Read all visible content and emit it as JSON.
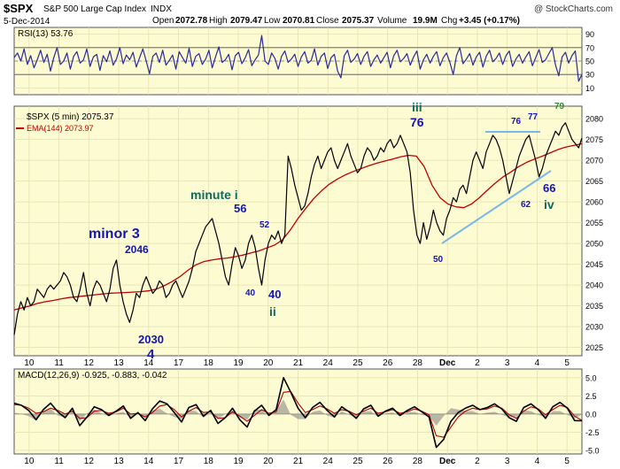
{
  "header": {
    "symbol": "$SPX",
    "name": "S&P 500 Large Cap Index",
    "exchange": "INDX",
    "date": "5-Dec-2014",
    "open_label": "Open",
    "open": "2072.78",
    "high_label": "High",
    "high": "2079.47",
    "low_label": "Low",
    "low": "2070.81",
    "close_label": "Close",
    "close": "2075.37",
    "volume_label": "Volume",
    "volume": "19.9M",
    "chg_label": "Chg",
    "chg": "+3.45 (+0.17%)",
    "watermark": "@ StockCharts.com"
  },
  "colors": {
    "panel_bg": "#fdfbd2",
    "price": "#000000",
    "ema": "#c00000",
    "rsi": "#2a2a9c",
    "macd": "#000000",
    "signal": "#b00000",
    "hist": "#7f7f7f",
    "annot_blue": "#1515b5",
    "annot_teal": "#106b5c",
    "annot_green": "#2f8a2f",
    "trendline": "#7ab8e6"
  },
  "chart_data": [
    {
      "type": "line",
      "panel": "rsi",
      "legend": "RSI(13) 53.76",
      "ylim": [
        0,
        100
      ],
      "levels": [
        70,
        30
      ],
      "y_ticks": [
        10,
        30,
        50,
        70,
        90
      ],
      "x_sessions": 19,
      "values": [
        55,
        62,
        50,
        68,
        45,
        58,
        40,
        52,
        66,
        48,
        60,
        35,
        55,
        70,
        45,
        50,
        62,
        38,
        57,
        64,
        47,
        52,
        68,
        42,
        56,
        60,
        36,
        58,
        49,
        65,
        44,
        53,
        70,
        46,
        59,
        52,
        63,
        41,
        55,
        68,
        50,
        31,
        57,
        62,
        48,
        66,
        44,
        51,
        59,
        38,
        64,
        55,
        47,
        69,
        42,
        57,
        61,
        45,
        53,
        66,
        40,
        56,
        71,
        48,
        52,
        60,
        37,
        58,
        63,
        46,
        55,
        67,
        43,
        52,
        59,
        88,
        50,
        45,
        62,
        54,
        38,
        57,
        65,
        48,
        53,
        60,
        42,
        56,
        64,
        47,
        51,
        68,
        44,
        57,
        62,
        39,
        55,
        60,
        35,
        25,
        58,
        66,
        48,
        53,
        61,
        45,
        57,
        64,
        42,
        52,
        59,
        47,
        55,
        63,
        40,
        58,
        66,
        49,
        54,
        61,
        44,
        56,
        65,
        38,
        52,
        60,
        47,
        57,
        64,
        43,
        55,
        62,
        48,
        30,
        58,
        70,
        46,
        53,
        61,
        44,
        56,
        63,
        41,
        57,
        66,
        49,
        54,
        62,
        45,
        58,
        65,
        42,
        53,
        60,
        47,
        56,
        64,
        43,
        55,
        67,
        48,
        52,
        61,
        70,
        44,
        28,
        56,
        63,
        47,
        58,
        65,
        20,
        30
      ]
    },
    {
      "type": "line",
      "panel": "price",
      "title": "$SPX (5 min) 2075.37",
      "series": [
        {
          "name": "$SPX (5 min) 2075.37",
          "values": [
            2028,
            2033,
            2036,
            2034,
            2037,
            2035,
            2036,
            2039,
            2038,
            2037,
            2039,
            2040,
            2039,
            2040,
            2041,
            2043,
            2042,
            2040,
            2037,
            2036,
            2039,
            2043,
            2038,
            2035,
            2039,
            2041,
            2040,
            2038,
            2036,
            2039,
            2044,
            2046,
            2040,
            2036,
            2033,
            2031,
            2034,
            2038,
            2037,
            2040,
            2042,
            2040,
            2038,
            2039,
            2041,
            2040,
            2037,
            2038,
            2040,
            2041,
            2039,
            2037,
            2039,
            2041,
            2044,
            2048,
            2050,
            2052,
            2054,
            2055,
            2056,
            2053,
            2050,
            2046,
            2042,
            2040,
            2045,
            2049,
            2047,
            2044,
            2046,
            2050,
            2052,
            2049,
            2044,
            2040,
            2046,
            2050,
            2052,
            2051,
            2053,
            2050,
            2052,
            2071,
            2068,
            2064,
            2061,
            2058,
            2059,
            2062,
            2066,
            2069,
            2071,
            2068,
            2070,
            2072,
            2073,
            2070,
            2068,
            2070,
            2072,
            2074,
            2071,
            2069,
            2067,
            2068,
            2071,
            2073,
            2072,
            2070,
            2071,
            2073,
            2072,
            2074,
            2075,
            2073,
            2074,
            2076,
            2074,
            2072,
            2067,
            2058,
            2052,
            2050,
            2055,
            2051,
            2054,
            2058,
            2055,
            2053,
            2052,
            2056,
            2058,
            2061,
            2060,
            2063,
            2064,
            2062,
            2066,
            2070,
            2072,
            2070,
            2068,
            2072,
            2074,
            2076,
            2075,
            2073,
            2070,
            2066,
            2062,
            2065,
            2068,
            2071,
            2073,
            2075,
            2076,
            2073,
            2070,
            2066,
            2068,
            2071,
            2073,
            2075,
            2077,
            2076,
            2078,
            2079,
            2077,
            2075,
            2074,
            2073,
            2075.37
          ]
        },
        {
          "name": "EMA(144) 2073.97",
          "values": [
            2034,
            2034.5,
            2035,
            2035.6,
            2036,
            2036.3,
            2036.7,
            2037,
            2037.2,
            2037.4,
            2037.6,
            2037.8,
            2038,
            2038.1,
            2038.2,
            2038.3,
            2038.4,
            2038.6,
            2039,
            2039.8,
            2040.8,
            2042,
            2043.5,
            2044.8,
            2045.6,
            2046,
            2046.3,
            2046.5,
            2046.8,
            2047.2,
            2047.7,
            2048.2,
            2048.9,
            2049.6,
            2050.8,
            2053.2,
            2056,
            2058.5,
            2060.8,
            2062.7,
            2064.3,
            2065.5,
            2066.5,
            2067.3,
            2068,
            2068.7,
            2069.3,
            2069.8,
            2070.3,
            2070.8,
            2071.2,
            2071,
            2068.5,
            2064,
            2061,
            2059.5,
            2058.8,
            2058.6,
            2059.5,
            2061,
            2062.8,
            2064.5,
            2066,
            2067.2,
            2068.5,
            2069.5,
            2070.3,
            2071,
            2071.8,
            2072.6,
            2073.2,
            2073.6,
            2073.97
          ]
        }
      ],
      "ylim": [
        2023,
        2083
      ],
      "y_ticks": [
        2025,
        2030,
        2035,
        2040,
        2045,
        2050,
        2055,
        2060,
        2065,
        2070,
        2075,
        2080
      ],
      "x_sessions": 19,
      "x_ticks": [
        "10",
        "11",
        "12",
        "13",
        "14",
        "17",
        "18",
        "19",
        "20",
        "21",
        "24",
        "25",
        "26",
        "28",
        "Dec",
        "2",
        "3",
        "4",
        "5"
      ],
      "annotations": [
        {
          "text": "minor 3",
          "color": "annot_blue",
          "big": true
        },
        {
          "text": "2046",
          "color": "annot_blue"
        },
        {
          "text": "2030",
          "color": "annot_blue"
        },
        {
          "text": "4",
          "color": "annot_blue",
          "big": true
        },
        {
          "text": "minute i",
          "color": "annot_teal"
        },
        {
          "text": "56",
          "color": "annot_blue"
        },
        {
          "text": "52",
          "color": "annot_blue",
          "small": true
        },
        {
          "text": "40",
          "color": "annot_blue",
          "small": true
        },
        {
          "text": "40",
          "color": "annot_blue"
        },
        {
          "text": "ii",
          "color": "annot_teal"
        },
        {
          "text": "iii",
          "color": "annot_teal"
        },
        {
          "text": "76",
          "color": "annot_blue"
        },
        {
          "text": "50",
          "color": "annot_blue",
          "small": true
        },
        {
          "text": "76",
          "color": "annot_blue",
          "small": true
        },
        {
          "text": "77",
          "color": "annot_blue",
          "small": true
        },
        {
          "text": "79",
          "color": "annot_green",
          "small": true
        },
        {
          "text": "62",
          "color": "annot_blue",
          "small": true
        },
        {
          "text": "66",
          "color": "annot_blue"
        },
        {
          "text": "iv",
          "color": "annot_teal"
        }
      ]
    },
    {
      "type": "line",
      "panel": "macd",
      "legend": "MACD(12,26,9) -0.925, -0.883, -0.042",
      "ylim": [
        -5.5,
        6.2
      ],
      "y_ticks": [
        -5.0,
        -2.5,
        0.0,
        2.5,
        5.0
      ],
      "x_sessions": 19,
      "x_ticks": [
        "10",
        "11",
        "12",
        "13",
        "14",
        "17",
        "18",
        "19",
        "20",
        "21",
        "24",
        "25",
        "26",
        "28",
        "Dec",
        "2",
        "3",
        "4",
        "5"
      ],
      "series": [
        {
          "name": "MACD",
          "values": [
            1.5,
            1.2,
            0.5,
            -0.8,
            0.6,
            1.5,
            0.3,
            -0.5,
            0.8,
            -1.6,
            -0.4,
            1.0,
            0.6,
            -0.2,
            0.4,
            1.1,
            -0.6,
            0.2,
            -0.9,
            0.7,
            1.8,
            1.4,
            0.2,
            -1.1,
            0.9,
            1.3,
            -0.3,
            0.5,
            -1.3,
            -0.5,
            0.8,
            -0.8,
            -1.8,
            0.4,
            1.2,
            -0.2,
            0.6,
            5.0,
            3.0,
            0.8,
            -0.5,
            0.9,
            1.6,
            0.5,
            -0.4,
            1.0,
            0.3,
            -0.6,
            0.7,
            1.2,
            -0.3,
            0.4,
            0.8,
            -0.2,
            0.5,
            1.0,
            0.3,
            -0.4,
            -4.6,
            -3.5,
            -1.0,
            0.2,
            0.8,
            1.2,
            0.6,
            0.9,
            1.4,
            0.7,
            -0.5,
            -1.0,
            0.9,
            1.4,
            0.6,
            -0.6,
            1.0,
            1.6,
            0.8,
            -0.9,
            -0.925
          ]
        },
        {
          "name": "Signal",
          "values": [
            1.3,
            1.2,
            0.8,
            0.1,
            0.3,
            0.8,
            0.5,
            0.0,
            0.4,
            -0.6,
            -0.5,
            0.4,
            0.5,
            0.1,
            0.3,
            0.8,
            0.0,
            0.1,
            -0.4,
            0.2,
            1.1,
            1.3,
            0.6,
            -0.4,
            0.4,
            0.9,
            0.2,
            0.3,
            -0.6,
            -0.5,
            0.3,
            -0.3,
            -1.0,
            -0.2,
            0.6,
            0.1,
            0.3,
            3.0,
            3.1,
            1.5,
            0.2,
            0.6,
            1.1,
            0.7,
            0.1,
            0.6,
            0.4,
            -0.1,
            0.4,
            0.8,
            0.1,
            0.3,
            0.6,
            0.1,
            0.3,
            0.7,
            0.4,
            -0.1,
            -3.0,
            -3.2,
            -1.8,
            -0.4,
            0.4,
            0.8,
            0.6,
            0.7,
            1.1,
            0.8,
            -0.1,
            -0.6,
            0.4,
            1.0,
            0.7,
            -0.1,
            0.6,
            1.2,
            0.9,
            -0.3,
            -0.883
          ]
        }
      ]
    }
  ]
}
